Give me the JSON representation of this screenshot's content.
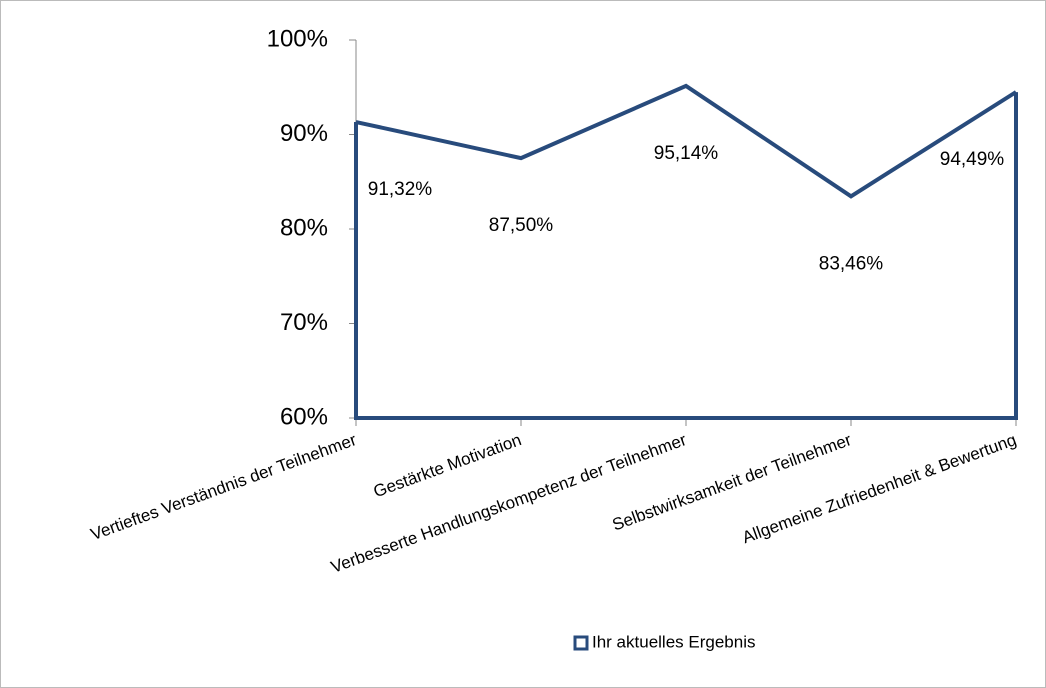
{
  "chart_data": {
    "type": "area",
    "categories": [
      "Vertieftes Verständnis der Teilnehmer",
      "Gestärkte Motivation",
      "Verbesserte Handlungskompetenz der Teilnehmer",
      "Selbstwirksamkeit der Teilnehmer",
      "Allgemeine Zufriedenheit & Bewertung"
    ],
    "series": [
      {
        "name": "Ihr aktuelles Ergebnis",
        "color": "#284b7c",
        "values": [
          91.32,
          87.5,
          95.14,
          83.46,
          94.49
        ],
        "value_labels": [
          "91,32%",
          "87,50%",
          "95,14%",
          "83,46%",
          "94,49%"
        ]
      }
    ],
    "ylim": [
      60,
      100
    ],
    "yticks": [
      {
        "value": 60,
        "label": "60%"
      },
      {
        "value": 70,
        "label": "70%"
      },
      {
        "value": 80,
        "label": "80%"
      },
      {
        "value": 90,
        "label": "90%"
      },
      {
        "value": 100,
        "label": "100%"
      }
    ],
    "legend": "bottom"
  }
}
